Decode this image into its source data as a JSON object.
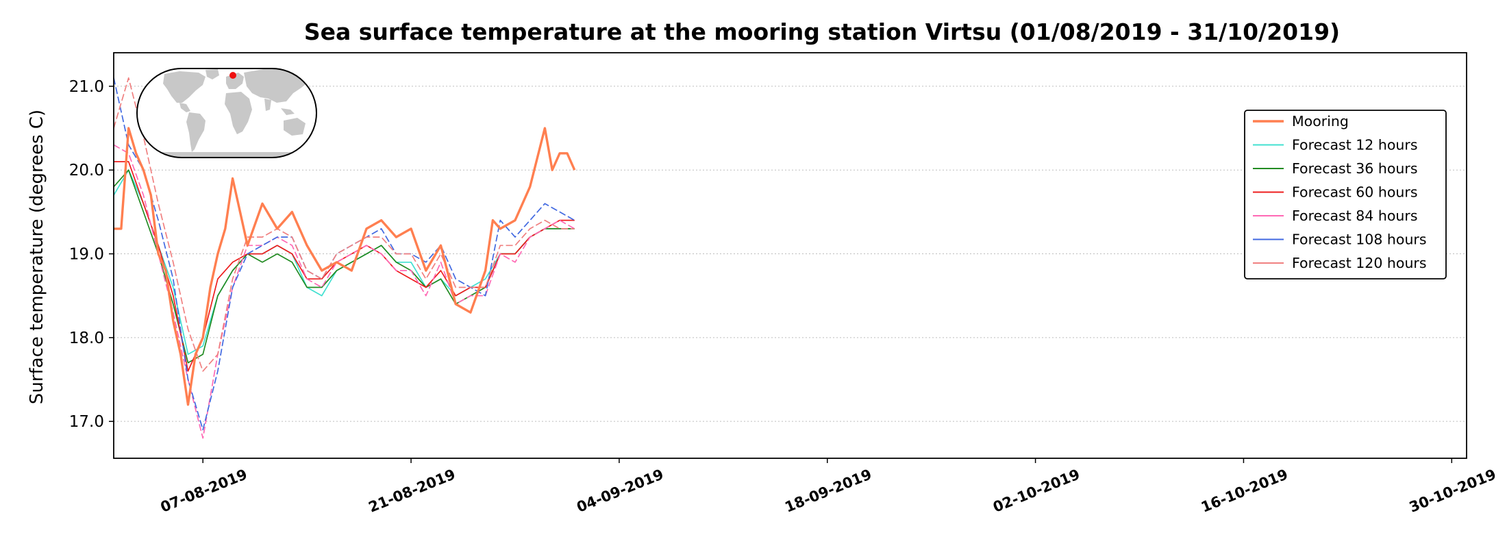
{
  "chart_data": {
    "type": "line",
    "title": "Sea surface temperature at the mooring station Virtsu (01/08/2019 - 31/10/2019)",
    "xlabel": "",
    "ylabel": "Surface temperature (degrees C)",
    "xlim": [
      "2019-08-01",
      "2019-10-31"
    ],
    "ylim": [
      16.56,
      21.4
    ],
    "yticks": [
      17.0,
      18.0,
      19.0,
      20.0,
      21.0
    ],
    "ytick_labels": [
      "17.0",
      "18.0",
      "19.0",
      "20.0",
      "21.0"
    ],
    "xticks": [
      "2019-08-07",
      "2019-08-21",
      "2019-09-04",
      "2019-09-18",
      "2019-10-02",
      "2019-10-16",
      "2019-10-30"
    ],
    "xtick_labels": [
      "07-08-2019",
      "21-08-2019",
      "04-09-2019",
      "18-09-2019",
      "02-10-2019",
      "16-10-2019",
      "30-10-2019"
    ],
    "grid": "horizontal dotted",
    "legend_position": "upper-right",
    "inset": "world map with station marker",
    "series": [
      {
        "name": "Mooring",
        "color": "#ff7f50",
        "style": "solid-thick",
        "x": [
          "2019-08-01",
          "2019-08-01T12:00",
          "2019-08-02",
          "2019-08-02T12:00",
          "2019-08-03",
          "2019-08-03T12:00",
          "2019-08-04",
          "2019-08-04T12:00",
          "2019-08-05",
          "2019-08-05T12:00",
          "2019-08-06",
          "2019-08-06T12:00",
          "2019-08-07",
          "2019-08-07T12:00",
          "2019-08-08",
          "2019-08-08T12:00",
          "2019-08-09",
          "2019-08-09T12:00",
          "2019-08-10",
          "2019-08-11",
          "2019-08-12",
          "2019-08-13",
          "2019-08-14",
          "2019-08-15",
          "2019-08-16",
          "2019-08-17",
          "2019-08-18",
          "2019-08-19",
          "2019-08-20",
          "2019-08-21",
          "2019-08-22",
          "2019-08-23",
          "2019-08-24",
          "2019-08-25",
          "2019-08-26",
          "2019-08-26T12:00",
          "2019-08-27",
          "2019-08-28",
          "2019-08-29",
          "2019-08-30",
          "2019-08-30T12:00",
          "2019-08-31",
          "2019-08-31T12:00",
          "2019-09-01"
        ],
        "y": [
          19.3,
          19.3,
          20.5,
          20.2,
          20.0,
          19.7,
          19.0,
          18.8,
          18.2,
          17.8,
          17.2,
          17.8,
          18.0,
          18.6,
          19.0,
          19.3,
          19.9,
          19.5,
          19.1,
          19.6,
          19.3,
          19.5,
          19.1,
          18.8,
          18.9,
          18.8,
          19.3,
          19.4,
          19.2,
          19.3,
          18.8,
          19.1,
          18.4,
          18.3,
          18.8,
          19.4,
          19.3,
          19.4,
          19.8,
          20.5,
          20.0,
          20.2,
          20.2,
          20.0
        ]
      },
      {
        "name": "Forecast 12 hours",
        "color": "#40e0d0",
        "style": "solid",
        "x": [
          "2019-08-01",
          "2019-08-02",
          "2019-08-03",
          "2019-08-04",
          "2019-08-05",
          "2019-08-06",
          "2019-08-07",
          "2019-08-08",
          "2019-08-09",
          "2019-08-10",
          "2019-08-11",
          "2019-08-12",
          "2019-08-13",
          "2019-08-14",
          "2019-08-15",
          "2019-08-16",
          "2019-08-17",
          "2019-08-18",
          "2019-08-19",
          "2019-08-20",
          "2019-08-21",
          "2019-08-22",
          "2019-08-23",
          "2019-08-24",
          "2019-08-25",
          "2019-08-26",
          "2019-08-27",
          "2019-08-28",
          "2019-08-29",
          "2019-08-30",
          "2019-08-31",
          "2019-09-01"
        ],
        "y": [
          19.7,
          20.0,
          19.6,
          19.1,
          18.6,
          17.8,
          17.9,
          18.5,
          18.8,
          19.0,
          19.0,
          19.1,
          19.0,
          18.6,
          18.5,
          18.8,
          18.9,
          19.0,
          19.1,
          18.9,
          18.9,
          18.6,
          18.7,
          18.5,
          18.6,
          18.7,
          19.0,
          19.0,
          19.2,
          19.3,
          19.3,
          19.3
        ]
      },
      {
        "name": "Forecast 36 hours",
        "color": "#228b22",
        "style": "solid",
        "x": [
          "2019-08-01",
          "2019-08-02",
          "2019-08-03",
          "2019-08-04",
          "2019-08-05",
          "2019-08-06",
          "2019-08-07",
          "2019-08-08",
          "2019-08-09",
          "2019-08-10",
          "2019-08-11",
          "2019-08-12",
          "2019-08-13",
          "2019-08-14",
          "2019-08-15",
          "2019-08-16",
          "2019-08-17",
          "2019-08-18",
          "2019-08-19",
          "2019-08-20",
          "2019-08-21",
          "2019-08-22",
          "2019-08-23",
          "2019-08-24",
          "2019-08-25",
          "2019-08-26",
          "2019-08-27",
          "2019-08-28",
          "2019-08-29",
          "2019-08-30",
          "2019-08-31",
          "2019-09-01"
        ],
        "y": [
          19.8,
          20.0,
          19.5,
          19.0,
          18.4,
          17.7,
          17.8,
          18.5,
          18.8,
          19.0,
          18.9,
          19.0,
          18.9,
          18.6,
          18.6,
          18.8,
          18.9,
          19.0,
          19.1,
          18.9,
          18.8,
          18.6,
          18.7,
          18.4,
          18.5,
          18.6,
          19.0,
          19.0,
          19.2,
          19.3,
          19.3,
          19.3
        ]
      },
      {
        "name": "Forecast 60 hours",
        "color": "#ee1c1c",
        "style": "solid",
        "x": [
          "2019-08-01",
          "2019-08-02",
          "2019-08-03",
          "2019-08-04",
          "2019-08-05",
          "2019-08-06",
          "2019-08-07",
          "2019-08-08",
          "2019-08-09",
          "2019-08-10",
          "2019-08-11",
          "2019-08-12",
          "2019-08-13",
          "2019-08-14",
          "2019-08-15",
          "2019-08-16",
          "2019-08-17",
          "2019-08-18",
          "2019-08-19",
          "2019-08-20",
          "2019-08-21",
          "2019-08-22",
          "2019-08-23",
          "2019-08-24",
          "2019-08-25",
          "2019-08-26",
          "2019-08-27",
          "2019-08-28",
          "2019-08-29",
          "2019-08-30",
          "2019-08-31",
          "2019-09-01"
        ],
        "y": [
          20.1,
          20.1,
          19.6,
          19.1,
          18.5,
          17.6,
          18.0,
          18.7,
          18.9,
          19.0,
          19.0,
          19.1,
          19.0,
          18.7,
          18.7,
          18.9,
          19.0,
          19.1,
          19.0,
          18.8,
          18.7,
          18.6,
          18.8,
          18.5,
          18.6,
          18.6,
          19.0,
          19.0,
          19.2,
          19.3,
          19.4,
          19.4
        ]
      },
      {
        "name": "Forecast 84 hours",
        "color": "#ff69b4",
        "style": "dashed",
        "x": [
          "2019-08-01",
          "2019-08-02",
          "2019-08-03",
          "2019-08-04",
          "2019-08-05",
          "2019-08-06",
          "2019-08-07",
          "2019-08-08",
          "2019-08-09",
          "2019-08-10",
          "2019-08-11",
          "2019-08-12",
          "2019-08-13",
          "2019-08-14",
          "2019-08-15",
          "2019-08-16",
          "2019-08-17",
          "2019-08-18",
          "2019-08-19",
          "2019-08-20",
          "2019-08-21",
          "2019-08-22",
          "2019-08-23",
          "2019-08-24",
          "2019-08-25",
          "2019-08-26",
          "2019-08-27",
          "2019-08-28",
          "2019-08-29",
          "2019-08-30",
          "2019-08-31",
          "2019-09-01"
        ],
        "y": [
          20.3,
          20.2,
          19.7,
          19.0,
          18.3,
          17.5,
          16.8,
          17.8,
          18.6,
          19.1,
          19.1,
          19.2,
          19.1,
          18.7,
          18.6,
          18.9,
          19.0,
          19.1,
          19.0,
          18.8,
          18.8,
          18.5,
          18.9,
          18.4,
          18.5,
          18.5,
          19.0,
          18.9,
          19.2,
          19.3,
          19.4,
          19.3
        ]
      },
      {
        "name": "Forecast 108 hours",
        "color": "#4169e1",
        "style": "dashed",
        "x": [
          "2019-08-01",
          "2019-08-02",
          "2019-08-03",
          "2019-08-04",
          "2019-08-05",
          "2019-08-06",
          "2019-08-07",
          "2019-08-08",
          "2019-08-09",
          "2019-08-10",
          "2019-08-11",
          "2019-08-12",
          "2019-08-13",
          "2019-08-14",
          "2019-08-15",
          "2019-08-16",
          "2019-08-17",
          "2019-08-18",
          "2019-08-19",
          "2019-08-20",
          "2019-08-21",
          "2019-08-22",
          "2019-08-23",
          "2019-08-24",
          "2019-08-25",
          "2019-08-26",
          "2019-08-27",
          "2019-08-28",
          "2019-08-29",
          "2019-08-30",
          "2019-08-31",
          "2019-09-01"
        ],
        "y": [
          21.1,
          20.3,
          20.0,
          19.4,
          18.7,
          17.5,
          16.9,
          17.6,
          18.6,
          19.0,
          19.1,
          19.2,
          19.2,
          18.8,
          18.7,
          19.0,
          19.1,
          19.2,
          19.3,
          19.0,
          19.0,
          18.9,
          19.1,
          18.7,
          18.6,
          18.5,
          19.4,
          19.2,
          19.4,
          19.6,
          19.5,
          19.4
        ]
      },
      {
        "name": "Forecast 120 hours",
        "color": "#f08080",
        "style": "dashed",
        "x": [
          "2019-08-01",
          "2019-08-02",
          "2019-08-03",
          "2019-08-04",
          "2019-08-05",
          "2019-08-06",
          "2019-08-07",
          "2019-08-08",
          "2019-08-09",
          "2019-08-10",
          "2019-08-11",
          "2019-08-12",
          "2019-08-13",
          "2019-08-14",
          "2019-08-15",
          "2019-08-16",
          "2019-08-17",
          "2019-08-18",
          "2019-08-19",
          "2019-08-20",
          "2019-08-21",
          "2019-08-22",
          "2019-08-23",
          "2019-08-24",
          "2019-08-25",
          "2019-08-26",
          "2019-08-27",
          "2019-08-28",
          "2019-08-29",
          "2019-08-30",
          "2019-08-31",
          "2019-09-01"
        ],
        "y": [
          20.5,
          21.1,
          20.4,
          19.6,
          18.9,
          18.1,
          17.6,
          17.8,
          18.7,
          19.2,
          19.2,
          19.3,
          19.2,
          18.8,
          18.7,
          19.0,
          19.1,
          19.2,
          19.2,
          19.0,
          19.0,
          18.7,
          19.0,
          18.6,
          18.6,
          18.6,
          19.1,
          19.1,
          19.3,
          19.4,
          19.3,
          19.3
        ]
      }
    ]
  }
}
